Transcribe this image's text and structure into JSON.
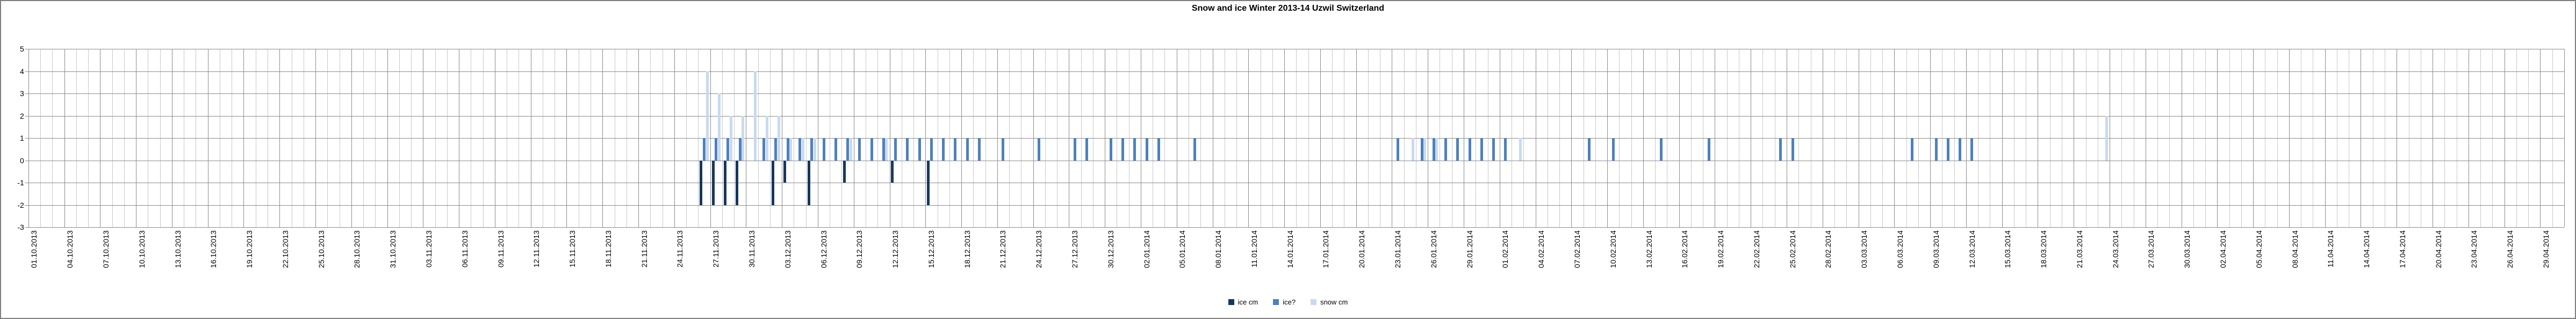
{
  "title": "Snow and ice Winter 2013-14 Uzwil Switzerland",
  "legend": [
    {
      "label": "ice cm",
      "color": "#17375E"
    },
    {
      "label": "ice?",
      "color": "#4E81BD"
    },
    {
      "label": "snow cm",
      "color": "#C9D9F0"
    }
  ],
  "chart_data": {
    "type": "bar",
    "title": "Snow and ice Winter 2013-14 Uzwil Switzerland",
    "xlabel": "",
    "ylabel": "",
    "ylim": [
      -3,
      5
    ],
    "y_ticks": [
      "5",
      "4",
      "3",
      "2",
      "1",
      "0",
      "-1",
      "-2",
      "-3"
    ],
    "grid": "on",
    "legend_position": "bottom",
    "x_start_date": "01.10.2013",
    "x_end_date": "30.04.2014",
    "num_days": 212,
    "x_tick_interval_days": 3,
    "x_tick_labels": [
      "01.10.2013",
      "04.10.2013",
      "07.10.2013",
      "10.10.2013",
      "13.10.2013",
      "16.10.2013",
      "19.10.2013",
      "22.10.2013",
      "25.10.2013",
      "28.10.2013",
      "31.10.2013",
      "03.11.2013",
      "06.11.2013",
      "09.11.2013",
      "12.11.2013",
      "15.11.2013",
      "18.11.2013",
      "21.11.2013",
      "24.11.2013",
      "27.11.2013",
      "30.11.2013",
      "03.12.2013",
      "06.12.2013",
      "09.12.2013",
      "12.12.2013",
      "15.12.2013",
      "18.12.2013",
      "21.12.2013",
      "24.12.2013",
      "27.12.2013",
      "30.12.2013",
      "02.01.2014",
      "05.01.2014",
      "08.01.2014",
      "11.01.2014",
      "14.01.2014",
      "17.01.2014",
      "20.01.2014",
      "23.01.2014",
      "26.01.2014",
      "29.01.2014",
      "01.02.2014",
      "04.02.2014",
      "07.02.2014",
      "10.02.2014",
      "13.02.2014",
      "16.02.2014",
      "19.02.2014",
      "22.02.2014",
      "25.02.2014",
      "28.02.2014",
      "03.03.2014",
      "06.03.2014",
      "09.03.2014",
      "12.03.2014",
      "15.03.2014",
      "18.03.2014",
      "21.03.2014",
      "24.03.2014",
      "27.03.2014",
      "30.03.2014",
      "02.04.2014",
      "05.04.2014",
      "08.04.2014",
      "11.04.2014",
      "14.04.2014",
      "17.04.2014",
      "20.04.2014",
      "23.04.2014",
      "26.04.2014",
      "29.04.2014"
    ],
    "series": [
      {
        "name": "ice cm",
        "color": "#17375E",
        "points": [
          [
            "26.11.2013",
            -2
          ],
          [
            "27.11.2013",
            -2
          ],
          [
            "28.11.2013",
            -2
          ],
          [
            "29.11.2013",
            -2
          ],
          [
            "02.12.2013",
            -2
          ],
          [
            "03.12.2013",
            -1
          ],
          [
            "05.12.2013",
            -2
          ],
          [
            "08.12.2013",
            -1
          ],
          [
            "12.12.2013",
            -1
          ],
          [
            "15.12.2013",
            -2
          ]
        ]
      },
      {
        "name": "ice?",
        "color": "#4E81BD",
        "points": [
          [
            "26.11.2013",
            1
          ],
          [
            "27.11.2013",
            1
          ],
          [
            "28.11.2013",
            1
          ],
          [
            "29.11.2013",
            1
          ],
          [
            "01.12.2013",
            1
          ],
          [
            "02.12.2013",
            1
          ],
          [
            "03.12.2013",
            1
          ],
          [
            "04.12.2013",
            1
          ],
          [
            "05.12.2013",
            1
          ],
          [
            "06.12.2013",
            1
          ],
          [
            "07.12.2013",
            1
          ],
          [
            "08.12.2013",
            1
          ],
          [
            "09.12.2013",
            1
          ],
          [
            "10.12.2013",
            1
          ],
          [
            "11.12.2013",
            1
          ],
          [
            "12.12.2013",
            1
          ],
          [
            "13.12.2013",
            1
          ],
          [
            "14.12.2013",
            1
          ],
          [
            "15.12.2013",
            1
          ],
          [
            "16.12.2013",
            1
          ],
          [
            "17.12.2013",
            1
          ],
          [
            "18.12.2013",
            1
          ],
          [
            "19.12.2013",
            1
          ],
          [
            "21.12.2013",
            1
          ],
          [
            "24.12.2013",
            1
          ],
          [
            "27.12.2013",
            1
          ],
          [
            "28.12.2013",
            1
          ],
          [
            "30.12.2013",
            1
          ],
          [
            "31.12.2013",
            1
          ],
          [
            "01.01.2014",
            1
          ],
          [
            "02.01.2014",
            1
          ],
          [
            "03.01.2014",
            1
          ],
          [
            "06.01.2014",
            1
          ],
          [
            "23.01.2014",
            1
          ],
          [
            "25.01.2014",
            1
          ],
          [
            "26.01.2014",
            1
          ],
          [
            "27.01.2014",
            1
          ],
          [
            "28.01.2014",
            1
          ],
          [
            "29.01.2014",
            1
          ],
          [
            "30.01.2014",
            1
          ],
          [
            "31.01.2014",
            1
          ],
          [
            "01.02.2014",
            1
          ],
          [
            "08.02.2014",
            1
          ],
          [
            "10.02.2014",
            1
          ],
          [
            "14.02.2014",
            1
          ],
          [
            "18.02.2014",
            1
          ],
          [
            "24.02.2014",
            1
          ],
          [
            "25.02.2014",
            1
          ],
          [
            "07.03.2014",
            1
          ],
          [
            "09.03.2014",
            1
          ],
          [
            "10.03.2014",
            1
          ],
          [
            "11.03.2014",
            1
          ],
          [
            "12.03.2014",
            1
          ]
        ]
      },
      {
        "name": "snow cm",
        "color": "#C9D9F0",
        "points": [
          [
            "26.11.2013",
            4
          ],
          [
            "27.11.2013",
            3
          ],
          [
            "28.11.2013",
            2
          ],
          [
            "29.11.2013",
            2
          ],
          [
            "30.11.2013",
            4
          ],
          [
            "01.12.2013",
            2
          ],
          [
            "02.12.2013",
            2
          ],
          [
            "03.12.2013",
            1
          ],
          [
            "04.12.2013",
            1
          ],
          [
            "05.12.2013",
            1
          ],
          [
            "08.12.2013",
            1
          ],
          [
            "11.12.2013",
            1
          ],
          [
            "24.01.2014",
            1
          ],
          [
            "25.01.2014",
            1
          ],
          [
            "26.01.2014",
            1
          ],
          [
            "02.02.2014",
            1
          ],
          [
            "23.03.2014",
            2
          ]
        ]
      }
    ]
  }
}
